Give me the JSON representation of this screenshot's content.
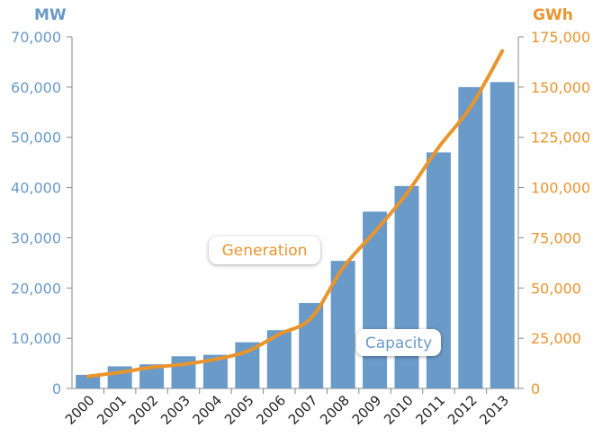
{
  "chart_data": {
    "type": "bar",
    "categories": [
      "2000",
      "2001",
      "2002",
      "2003",
      "2004",
      "2005",
      "2006",
      "2007",
      "2008",
      "2009",
      "2010",
      "2011",
      "2012",
      "2013"
    ],
    "series": [
      {
        "name": "Capacity",
        "type": "bar",
        "axis": "left",
        "color": "#6a9ac8",
        "values": [
          2700,
          4400,
          4800,
          6400,
          6700,
          9200,
          11600,
          17000,
          25400,
          35200,
          40300,
          47000,
          60000,
          61000
        ]
      },
      {
        "name": "Generation",
        "type": "line",
        "axis": "right",
        "color": "#e8952e",
        "values": [
          6000,
          8000,
          10500,
          12000,
          14500,
          18500,
          27000,
          35000,
          60000,
          78000,
          97000,
          120000,
          140000,
          168000
        ]
      }
    ],
    "y_left": {
      "unit": "MW",
      "ylim": [
        0,
        70000
      ],
      "ticks": [
        "0",
        "10,000",
        "20,000",
        "30,000",
        "40,000",
        "50,000",
        "60,000",
        "70,000"
      ]
    },
    "y_right": {
      "unit": "GWh",
      "ylim": [
        0,
        175000
      ],
      "ticks": [
        "0",
        "25,000",
        "50,000",
        "75,000",
        "100,000",
        "125,000",
        "150,000",
        "175,000"
      ]
    },
    "labels": {
      "generation": "Generation",
      "capacity": "Capacity"
    },
    "grid": false,
    "colors": {
      "left_axis": "#6a9ac8",
      "right_axis": "#e8952e",
      "bars": "#6a9ac8",
      "line": "#e8952e"
    }
  }
}
